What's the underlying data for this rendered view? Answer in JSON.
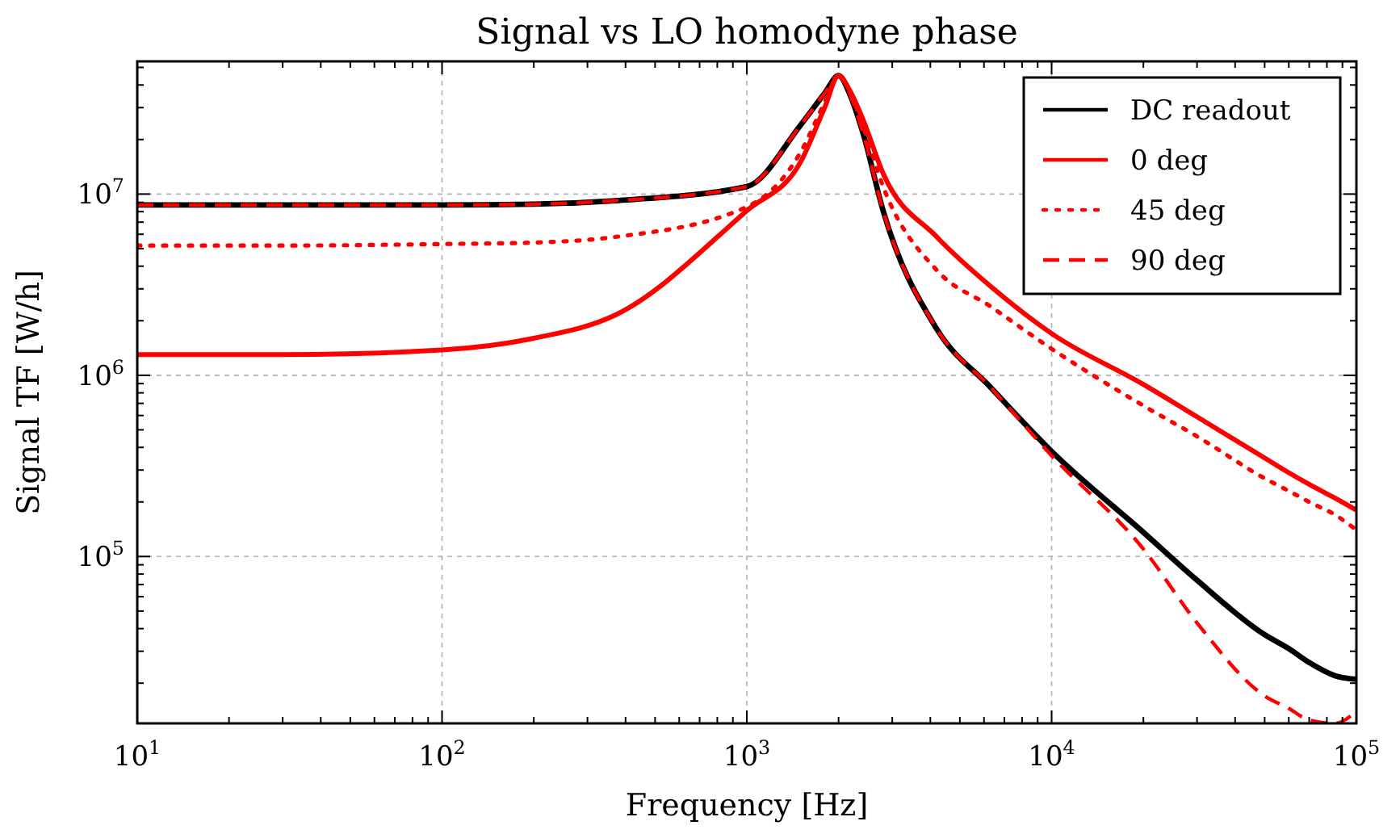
{
  "chart_data": {
    "type": "line",
    "title": "Signal vs LO homodyne phase",
    "xlabel": "Frequency [Hz]",
    "ylabel": "Signal TF [W/h]",
    "log": "xy",
    "grid": true,
    "legend": "top right",
    "x": [
      10,
      30,
      100,
      200,
      370,
      1000,
      1500,
      1800,
      2000,
      2200,
      2400,
      2800,
      4200,
      6300,
      10000,
      20000,
      30000,
      50000,
      60000,
      70000,
      85000,
      100000
    ],
    "xlim": [
      10,
      100000
    ],
    "xticks": [
      {
        "value": 10,
        "label": "10$^{1}$"
      },
      {
        "value": 20,
        "label": null
      },
      {
        "value": 30,
        "label": null
      },
      {
        "value": 40,
        "label": null
      },
      {
        "value": 50,
        "label": null
      },
      {
        "value": 60,
        "label": null
      },
      {
        "value": 70,
        "label": null
      },
      {
        "value": 80,
        "label": null
      },
      {
        "value": 90,
        "label": null
      },
      {
        "value": 100,
        "label": "10$^{2}$"
      },
      {
        "value": 200,
        "label": null
      },
      {
        "value": 300,
        "label": null
      },
      {
        "value": 400,
        "label": null
      },
      {
        "value": 500,
        "label": null
      },
      {
        "value": 600,
        "label": null
      },
      {
        "value": 700,
        "label": null
      },
      {
        "value": 800,
        "label": null
      },
      {
        "value": 900,
        "label": null
      },
      {
        "value": 1000,
        "label": "10$^{3}$"
      },
      {
        "value": 2000,
        "label": null
      },
      {
        "value": 3000,
        "label": null
      },
      {
        "value": 4000,
        "label": null
      },
      {
        "value": 5000,
        "label": null
      },
      {
        "value": 6000,
        "label": null
      },
      {
        "value": 7000,
        "label": null
      },
      {
        "value": 8000,
        "label": null
      },
      {
        "value": 9000,
        "label": null
      },
      {
        "value": 10000,
        "label": "10$^{4}$"
      },
      {
        "value": 20000,
        "label": null
      },
      {
        "value": 30000,
        "label": null
      },
      {
        "value": 40000,
        "label": null
      },
      {
        "value": 50000,
        "label": null
      },
      {
        "value": 60000,
        "label": null
      },
      {
        "value": 70000,
        "label": null
      },
      {
        "value": 80000,
        "label": null
      },
      {
        "value": 90000,
        "label": null
      },
      {
        "value": 100000,
        "label": "10$^{5}$"
      }
    ],
    "ylim": [
      12000,
      54000000
    ],
    "yticks": [
      {
        "value": 20000,
        "label": null
      },
      {
        "value": 30000,
        "label": null
      },
      {
        "value": 40000,
        "label": null
      },
      {
        "value": 50000,
        "label": null
      },
      {
        "value": 60000,
        "label": null
      },
      {
        "value": 70000,
        "label": null
      },
      {
        "value": 80000,
        "label": null
      },
      {
        "value": 90000,
        "label": null
      },
      {
        "value": 100000,
        "label": "10$^{5}$"
      },
      {
        "value": 200000,
        "label": null
      },
      {
        "value": 300000,
        "label": null
      },
      {
        "value": 400000,
        "label": null
      },
      {
        "value": 500000,
        "label": null
      },
      {
        "value": 600000,
        "label": null
      },
      {
        "value": 700000,
        "label": null
      },
      {
        "value": 800000,
        "label": null
      },
      {
        "value": 900000,
        "label": null
      },
      {
        "value": 1000000,
        "label": "10$^{6}$"
      },
      {
        "value": 2000000,
        "label": null
      },
      {
        "value": 3000000,
        "label": null
      },
      {
        "value": 4000000,
        "label": null
      },
      {
        "value": 5000000,
        "label": null
      },
      {
        "value": 6000000,
        "label": null
      },
      {
        "value": 7000000,
        "label": null
      },
      {
        "value": 8000000,
        "label": null
      },
      {
        "value": 9000000,
        "label": null
      },
      {
        "value": 10000000,
        "label": "10$^{7}$"
      },
      {
        "value": 20000000,
        "label": null
      },
      {
        "value": 30000000,
        "label": null
      },
      {
        "value": 40000000,
        "label": null
      },
      {
        "value": 50000000,
        "label": null
      }
    ],
    "series": [
      {
        "name": "DC readout",
        "color": "#000000",
        "line_style": "solid",
        "values": [
          8700000,
          8700000,
          8700000,
          8800000,
          9200000,
          11000000,
          24000000,
          36000000,
          45000000,
          34000000,
          22000000,
          8100000,
          1800000,
          860000,
          380000,
          136000,
          74000,
          37000,
          31000,
          26000,
          22000,
          21000
        ]
      },
      {
        "name": "0 deg",
        "color": "#ff0000",
        "line_style": "solid",
        "values": [
          1300000,
          1300000,
          1380000,
          1600000,
          2150000,
          8100000,
          15000000,
          30000000,
          45000000,
          36000000,
          26000000,
          13000000,
          5800000,
          3100000,
          1700000,
          890000,
          590000,
          350000,
          290000,
          250000,
          210000,
          180000
        ]
      },
      {
        "name": "45 deg",
        "color": "#ff0000",
        "line_style": "dotted",
        "values": [
          5200000,
          5200000,
          5300000,
          5400000,
          5800000,
          8500000,
          17000000,
          32000000,
          45000000,
          35000000,
          24000000,
          11000000,
          3800000,
          2400000,
          1400000,
          680000,
          460000,
          270000,
          230000,
          200000,
          170000,
          140000
        ]
      },
      {
        "name": "90 deg",
        "color": "#ff0000",
        "line_style": "dashed",
        "values": [
          8700000,
          8700000,
          8700000,
          8800000,
          9200000,
          11000000,
          24000000,
          36000000,
          45000000,
          34000000,
          22000000,
          8100000,
          1800000,
          860000,
          360000,
          110000,
          43000,
          17000,
          14500,
          12500,
          12000,
          14000
        ]
      }
    ]
  }
}
